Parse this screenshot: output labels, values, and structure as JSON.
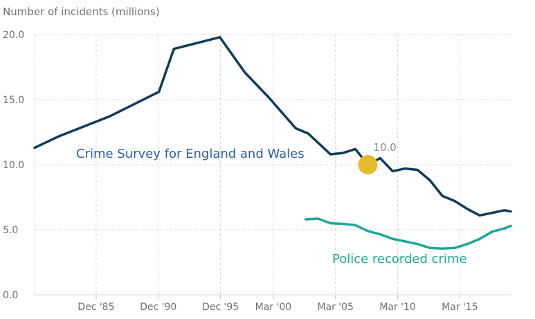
{
  "chart_data": {
    "type": "line",
    "ylabel": "Number of incidents (millions)",
    "ylim": [
      0,
      20
    ],
    "yticks": [
      "0.0",
      "5.0",
      "10.0",
      "15.0",
      "20.0"
    ],
    "xlim": [
      1981.0,
      2019.3
    ],
    "xticks": [
      {
        "label": "Dec '85",
        "x": 1985.95
      },
      {
        "label": "Dec '90",
        "x": 1990.95
      },
      {
        "label": "Dec '95",
        "x": 1995.95
      },
      {
        "label": "Mar '00",
        "x": 2000.2
      },
      {
        "label": "Mar '05",
        "x": 2005.2
      },
      {
        "label": "Mar '10",
        "x": 2010.2
      },
      {
        "label": "Mar '15",
        "x": 2015.2
      }
    ],
    "grid": true,
    "series": [
      {
        "name": "Crime Survey for England and Wales",
        "color": "#0e3c5a",
        "label_color": "#2b5f9e",
        "points": [
          [
            1981.0,
            11.3
          ],
          [
            1983.0,
            12.2
          ],
          [
            1987.0,
            13.7
          ],
          [
            1991.0,
            15.6
          ],
          [
            1992.2,
            18.9
          ],
          [
            1995.9,
            19.8
          ],
          [
            1997.9,
            17.1
          ],
          [
            1999.9,
            15.1
          ],
          [
            2002.0,
            12.8
          ],
          [
            2003.0,
            12.4
          ],
          [
            2004.8,
            10.8
          ],
          [
            2005.8,
            10.9
          ],
          [
            2006.8,
            11.2
          ],
          [
            2007.8,
            10.0
          ],
          [
            2008.8,
            10.5
          ],
          [
            2009.8,
            9.5
          ],
          [
            2010.8,
            9.7
          ],
          [
            2011.8,
            9.6
          ],
          [
            2012.8,
            8.8
          ],
          [
            2013.8,
            7.6
          ],
          [
            2014.8,
            7.2
          ],
          [
            2015.8,
            6.6
          ],
          [
            2016.8,
            6.1
          ],
          [
            2017.8,
            6.3
          ],
          [
            2018.8,
            6.5
          ],
          [
            2019.3,
            6.4
          ]
        ]
      },
      {
        "name": "Police recorded crime",
        "color": "#1ba89c",
        "label_color": "#1ba89c",
        "points": [
          [
            2002.8,
            5.8
          ],
          [
            2003.8,
            5.85
          ],
          [
            2004.8,
            5.5
          ],
          [
            2005.8,
            5.45
          ],
          [
            2006.8,
            5.35
          ],
          [
            2007.8,
            4.9
          ],
          [
            2008.8,
            4.65
          ],
          [
            2009.8,
            4.3
          ],
          [
            2010.8,
            4.1
          ],
          [
            2011.8,
            3.9
          ],
          [
            2012.8,
            3.6
          ],
          [
            2013.8,
            3.55
          ],
          [
            2014.8,
            3.6
          ],
          [
            2015.8,
            3.9
          ],
          [
            2016.8,
            4.3
          ],
          [
            2017.8,
            4.85
          ],
          [
            2018.8,
            5.1
          ],
          [
            2019.3,
            5.3
          ]
        ]
      }
    ],
    "highlight": {
      "x": 2007.8,
      "y": 10.0,
      "label": "10.0",
      "color": "#e3bc2b"
    }
  }
}
